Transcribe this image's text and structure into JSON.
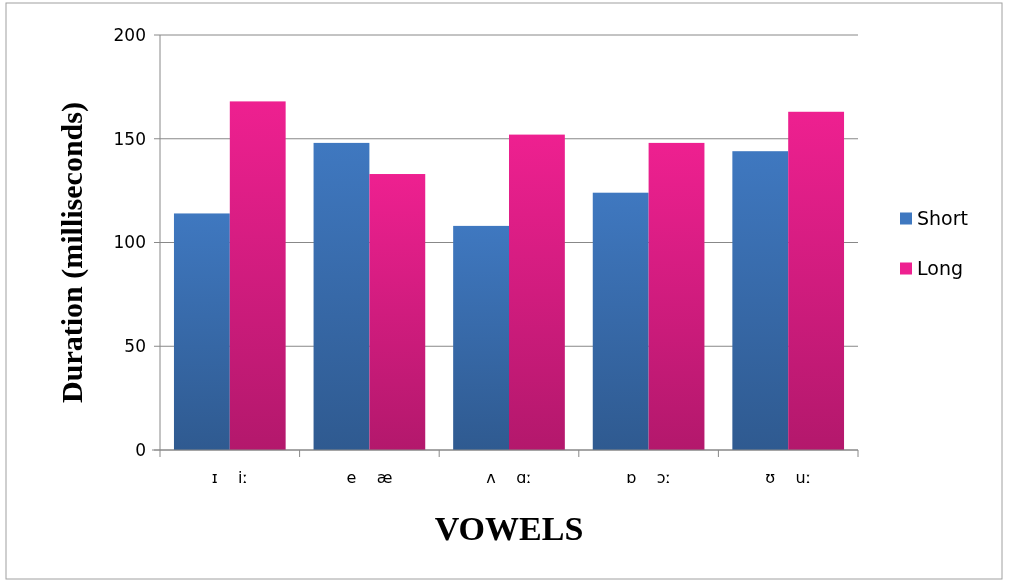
{
  "chart_data": {
    "type": "bar",
    "xlabel": "VOWELS",
    "ylabel": "Duration (milliseconds)",
    "categories": [
      "ɪ    iː",
      "e    æ",
      "ʌ    ɑː",
      "ɒ    ɔː",
      "ʊ    uː"
    ],
    "series": [
      {
        "name": "Short",
        "color": "#3f78c0",
        "values": [
          114,
          148,
          108,
          124,
          144
        ]
      },
      {
        "name": "Long",
        "color": "#ee2090",
        "values": [
          168,
          133,
          152,
          148,
          163
        ]
      }
    ],
    "ylim": [
      0,
      200
    ],
    "yticks": [
      0,
      50,
      100,
      150,
      200
    ],
    "grid": "y",
    "legend": "right"
  }
}
